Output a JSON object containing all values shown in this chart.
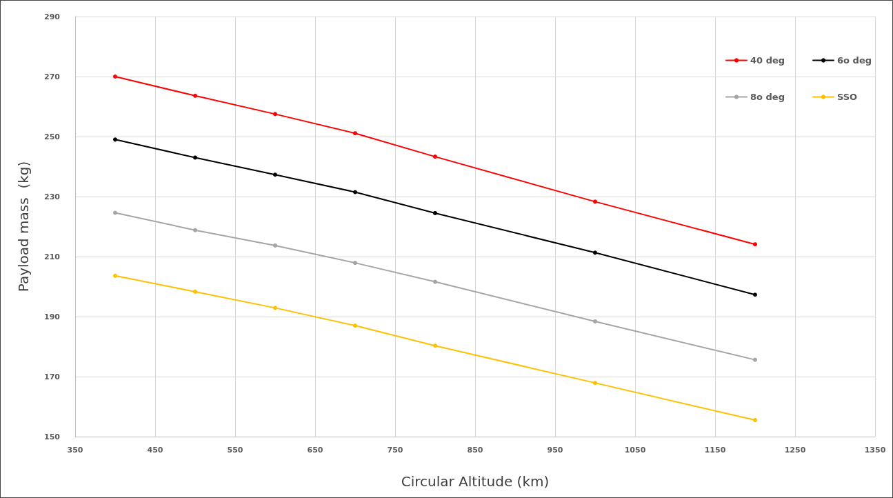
{
  "chart_data": {
    "type": "line",
    "xlabel": "Circular Altitude (km)",
    "ylabel": "Payload mass  (kg)",
    "x": [
      400,
      500,
      600,
      700,
      800,
      1000,
      1200
    ],
    "series": [
      {
        "name": "40 deg",
        "color": "#ff0000",
        "values": [
          270,
          263.6,
          257.5,
          251.1,
          243.3,
          228.3,
          214.1
        ]
      },
      {
        "name": "6o deg",
        "color": "#000000",
        "values": [
          249,
          243,
          237.3,
          231.5,
          224.5,
          211.3,
          197.3
        ]
      },
      {
        "name": "8o deg",
        "color": "#a5a5a5",
        "values": [
          224.6,
          218.8,
          213.7,
          207.9,
          201.6,
          188.4,
          175.6
        ]
      },
      {
        "name": "SSO",
        "color": "#ffc000",
        "values": [
          203.6,
          198.3,
          192.9,
          187,
          180.3,
          167.9,
          155.5
        ]
      }
    ],
    "xlim": [
      350,
      1350
    ],
    "xticks": [
      350,
      450,
      550,
      650,
      750,
      850,
      950,
      1050,
      1150,
      1250,
      1350
    ],
    "ylim": [
      150,
      290
    ],
    "yticks": [
      150,
      170,
      190,
      210,
      230,
      250,
      270,
      290
    ],
    "grid": true,
    "legend": "top right",
    "marker": "circle",
    "line_style": "solid"
  }
}
